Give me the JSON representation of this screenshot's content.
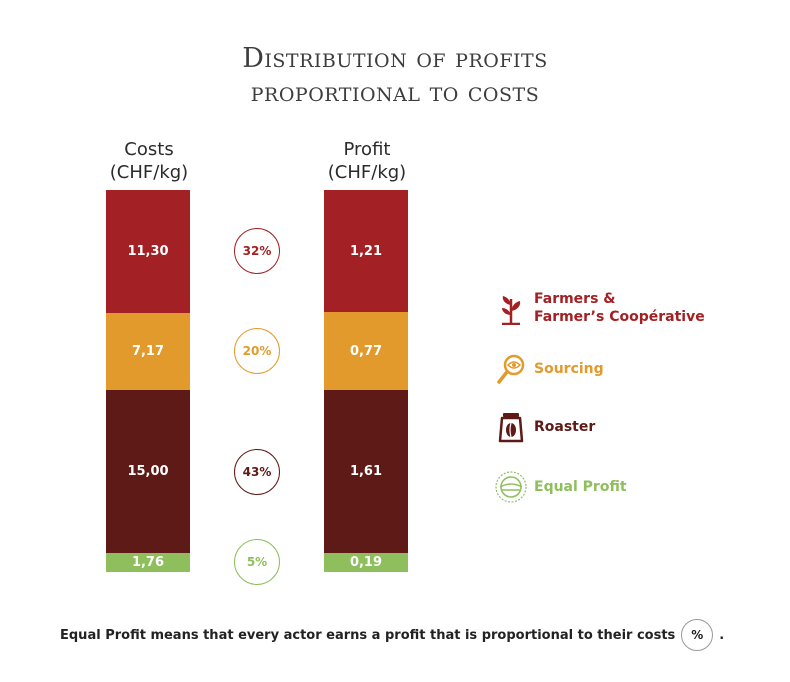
{
  "title_line1": "Distribution of profits",
  "title_line2": "proportional to costs",
  "costs_header": {
    "line1": "Costs",
    "line2": "(CHF/kg)"
  },
  "profit_header": {
    "line1": "Profit",
    "line2": "(CHF/kg)"
  },
  "colors": {
    "farmers": "#a32124",
    "sourcing": "#e39a2c",
    "roaster": "#5e1a16",
    "equal_profit": "#8fbf5d"
  },
  "legend": {
    "farmers_line1": "Farmers &",
    "farmers_line2": "Farmer’s Coopérative",
    "sourcing": "Sourcing",
    "roaster": "Roaster",
    "equal_profit": "Equal Profit"
  },
  "footer": {
    "text": "Equal Profit means that every actor earns a profit that is proportional to their costs",
    "symbol": "%",
    "end": "."
  },
  "chart_data": {
    "type": "bar",
    "stacked": true,
    "categories": [
      "Costs (CHF/kg)",
      "Profit (CHF/kg)"
    ],
    "series": [
      {
        "name": "Farmers & Farmer’s Coopérative",
        "key": "farmers",
        "cost": 11.3,
        "cost_label": "11,30",
        "profit": 1.21,
        "profit_label": "1,21",
        "share": 32,
        "share_label": "32%"
      },
      {
        "name": "Sourcing",
        "key": "sourcing",
        "cost": 7.17,
        "cost_label": "7,17",
        "profit": 0.77,
        "profit_label": "0,77",
        "share": 20,
        "share_label": "20%"
      },
      {
        "name": "Roaster",
        "key": "roaster",
        "cost": 15.0,
        "cost_label": "15,00",
        "profit": 1.61,
        "profit_label": "1,61",
        "share": 43,
        "share_label": "43%"
      },
      {
        "name": "Equal Profit",
        "key": "equal_profit",
        "cost": 1.76,
        "cost_label": "1,76",
        "profit": 0.19,
        "profit_label": "0,19",
        "share": 5,
        "share_label": "5%"
      }
    ]
  }
}
